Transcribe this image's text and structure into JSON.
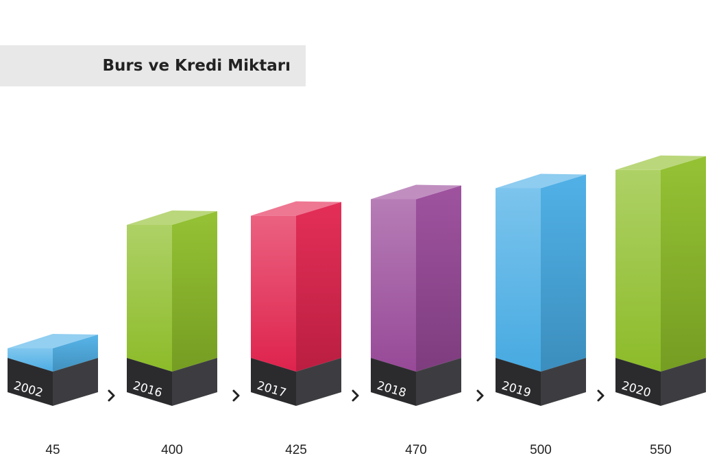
{
  "chart_data": {
    "type": "bar",
    "title": "Burs ve Kredi Miktarı",
    "categories": [
      "2002",
      "2016",
      "2017",
      "2018",
      "2019",
      "2020"
    ],
    "values": [
      45,
      400,
      425,
      470,
      500,
      550
    ],
    "value_labels": [
      "45",
      "400",
      "425",
      "470",
      "500",
      "550"
    ],
    "colors": [
      "#4fb1e8",
      "#8fbf2a",
      "#e3244f",
      "#9a4a9a",
      "#48ade6",
      "#8fbf2a"
    ],
    "xlabel": "",
    "ylabel": "",
    "grid": false,
    "separator_glyph": "›"
  }
}
